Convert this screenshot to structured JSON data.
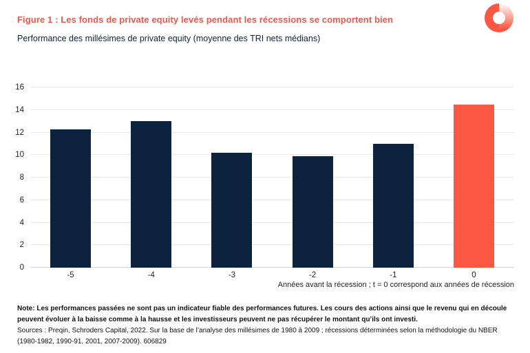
{
  "header": {
    "title": "Figure 1 : Les fonds de private equity levés pendant les récessions se comportent bien",
    "subtitle": "Performance des millésimes de private equity (moyenne des TRI nets médians)"
  },
  "chart_data": {
    "type": "bar",
    "title": "Figure 1 : Les fonds de private equity levés pendant les récessions se comportent bien",
    "subtitle": "Performance des millésimes de private equity (moyenne des TRI nets médians)",
    "categories": [
      "-5",
      "-4",
      "-3",
      "-2",
      "-1",
      "0"
    ],
    "values": [
      12.3,
      13.0,
      10.2,
      9.9,
      11.0,
      14.5
    ],
    "bar_colors": [
      "#0c2340",
      "#0c2340",
      "#0c2340",
      "#0c2340",
      "#0c2340",
      "#fb5743"
    ],
    "xlabel": "Années avant la récession ; t = 0 correspond aux années de récession",
    "ylabel": "",
    "ylim": [
      0,
      16
    ],
    "yticks": [
      0,
      2,
      4,
      6,
      8,
      10,
      12,
      14,
      16
    ],
    "grid": true,
    "legend": "none"
  },
  "footnote": {
    "bold": "Note: Les performances passées ne sont pas un indicateur fiable des performances futures. Les cours des actions ainsi que le revenu qui en découle peuvent évoluer à la baisse comme à la hausse et les investisseurs peuvent ne pas récupérer le montant qu’ils ont investi.",
    "sources": "Sources : Preqin, Schroders Capital, 2022. Sur la base de l’analyse des millésimes de 1980 à 2009 ; récessions déterminées selon la méthodologie du NBER (1980-1982, 1990-91, 2001, 2007-2009). 606829"
  },
  "colors": {
    "accent": "#fb5743",
    "title": "#f0564a",
    "navy": "#0c2340",
    "gridline": "#e7e7e7",
    "axis_line": "#d2d2d2",
    "tick_text": "#222222",
    "note_text": "#111111"
  }
}
